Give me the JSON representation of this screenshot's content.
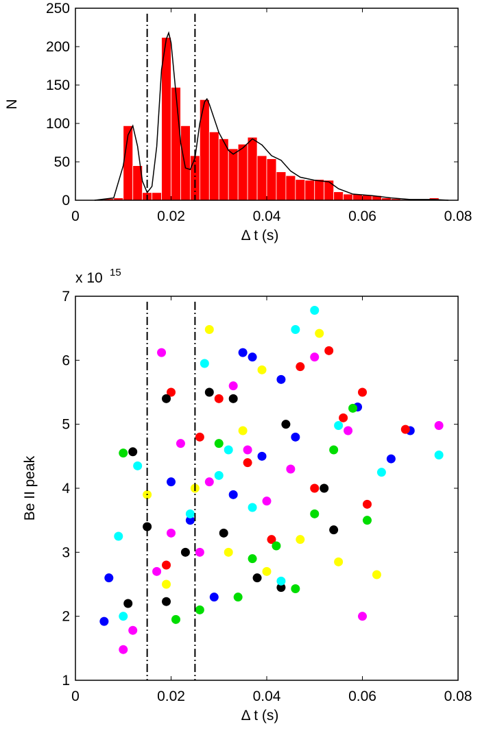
{
  "chart_data": [
    {
      "type": "histogram",
      "xlabel": "Δ t (s)",
      "ylabel": "N",
      "bins": [
        0.004,
        0.006,
        0.008,
        0.01,
        0.012,
        0.014,
        0.016,
        0.018,
        0.02,
        0.022,
        0.024,
        0.026,
        0.028,
        0.03,
        0.032,
        0.034,
        0.036,
        0.038,
        0.04,
        0.042,
        0.044,
        0.046,
        0.048,
        0.05,
        0.052,
        0.054,
        0.056,
        0.058,
        0.06,
        0.062,
        0.064,
        0.066,
        0.068,
        0.07,
        0.072,
        0.074,
        0.076,
        0.078
      ],
      "counts": [
        1,
        2,
        3,
        97,
        45,
        10,
        10,
        212,
        147,
        97,
        58,
        131,
        89,
        80,
        67,
        73,
        82,
        58,
        54,
        37,
        32,
        27,
        26,
        27,
        26,
        11,
        8,
        8,
        7,
        6,
        3,
        2,
        1,
        1,
        0,
        3,
        0
      ],
      "color": "#ff0000",
      "curve": {
        "color": "#000000",
        "x": [
          0.004,
          0.008,
          0.01,
          0.011,
          0.012,
          0.013,
          0.014,
          0.015,
          0.016,
          0.017,
          0.018,
          0.019,
          0.0195,
          0.02,
          0.021,
          0.022,
          0.023,
          0.024,
          0.025,
          0.026,
          0.027,
          0.0275,
          0.028,
          0.03,
          0.032,
          0.033,
          0.035,
          0.037,
          0.039,
          0.041,
          0.043,
          0.045,
          0.047,
          0.05,
          0.053,
          0.055,
          0.058,
          0.062,
          0.066,
          0.07,
          0.075,
          0.078
        ],
        "y": [
          0,
          3,
          45,
          85,
          97,
          70,
          25,
          10,
          18,
          70,
          170,
          210,
          218,
          205,
          140,
          75,
          42,
          40,
          55,
          100,
          128,
          132,
          125,
          88,
          65,
          60,
          68,
          80,
          72,
          58,
          52,
          38,
          30,
          26,
          24,
          15,
          8,
          6,
          3,
          1,
          1,
          0
        ]
      },
      "vlines": [
        0.015,
        0.025
      ],
      "xlim": [
        0,
        0.08
      ],
      "xticks": [
        0,
        0.02,
        0.04,
        0.06,
        0.08
      ],
      "ylim": [
        0,
        250
      ],
      "yticks": [
        0,
        50,
        100,
        150,
        200,
        250
      ]
    },
    {
      "type": "scatter",
      "xlabel": "Δ t (s)",
      "ylabel": "Be II peak",
      "y_multiplier": {
        "base": "x 10",
        "exponent": "15"
      },
      "series": [
        {
          "color": "#0000ff",
          "x": [
            0.006,
            0.007,
            0.029,
            0.035,
            0.037,
            0.043,
            0.039,
            0.059,
            0.066,
            0.07,
            0.024,
            0.033,
            0.046,
            0.02
          ],
          "y": [
            1.92,
            2.6,
            2.3,
            6.12,
            6.05,
            5.7,
            4.5,
            5.27,
            4.46,
            4.9,
            3.5,
            3.9,
            4.8,
            4.1
          ]
        },
        {
          "color": "#ff0000",
          "x": [
            0.02,
            0.03,
            0.047,
            0.053,
            0.06,
            0.056,
            0.069,
            0.061,
            0.041,
            0.026,
            0.036,
            0.019,
            0.05
          ],
          "y": [
            5.5,
            5.4,
            5.9,
            6.15,
            5.5,
            5.1,
            4.92,
            3.75,
            3.2,
            4.8,
            4.4,
            2.8,
            4.0
          ]
        },
        {
          "color": "#000000",
          "x": [
            0.019,
            0.012,
            0.011,
            0.019,
            0.028,
            0.033,
            0.044,
            0.052,
            0.054,
            0.043,
            0.038,
            0.023,
            0.031,
            0.015
          ],
          "y": [
            5.4,
            4.57,
            2.2,
            2.23,
            5.5,
            5.4,
            5.0,
            4.0,
            3.35,
            2.45,
            2.6,
            3.0,
            3.3,
            3.4
          ]
        },
        {
          "color": "#00dd00",
          "x": [
            0.01,
            0.021,
            0.034,
            0.046,
            0.054,
            0.058,
            0.061,
            0.042,
            0.026,
            0.03,
            0.05,
            0.037
          ],
          "y": [
            4.55,
            1.95,
            2.3,
            2.43,
            4.6,
            5.25,
            3.5,
            3.1,
            2.1,
            4.7,
            3.6,
            2.9
          ]
        },
        {
          "color": "#ffff00",
          "x": [
            0.028,
            0.039,
            0.051,
            0.063,
            0.04,
            0.025,
            0.032,
            0.047,
            0.055,
            0.015,
            0.035,
            0.019
          ],
          "y": [
            6.48,
            5.85,
            6.42,
            2.65,
            2.7,
            4.0,
            3.0,
            3.2,
            2.85,
            3.9,
            4.9,
            2.5
          ]
        },
        {
          "color": "#00ffff",
          "x": [
            0.009,
            0.01,
            0.027,
            0.046,
            0.05,
            0.055,
            0.076,
            0.064,
            0.043,
            0.032,
            0.024,
            0.03,
            0.013,
            0.037
          ],
          "y": [
            3.25,
            2.0,
            5.95,
            6.48,
            6.78,
            4.98,
            4.52,
            4.25,
            2.55,
            4.6,
            3.6,
            4.2,
            4.35,
            3.7
          ]
        },
        {
          "color": "#ff00ff",
          "x": [
            0.01,
            0.018,
            0.033,
            0.05,
            0.06,
            0.076,
            0.057,
            0.012,
            0.022,
            0.02,
            0.028,
            0.036,
            0.04,
            0.017,
            0.045,
            0.026
          ],
          "y": [
            1.48,
            6.12,
            5.6,
            6.05,
            2.0,
            4.98,
            4.9,
            1.78,
            4.7,
            3.3,
            4.1,
            4.6,
            3.8,
            2.7,
            4.3,
            3.0
          ]
        }
      ],
      "vlines": [
        0.015,
        0.025
      ],
      "xlim": [
        0,
        0.08
      ],
      "xticks": [
        0,
        0.02,
        0.04,
        0.06,
        0.08
      ],
      "ylim": [
        1,
        7
      ],
      "yticks": [
        1,
        2,
        3,
        4,
        5,
        6,
        7
      ]
    }
  ]
}
